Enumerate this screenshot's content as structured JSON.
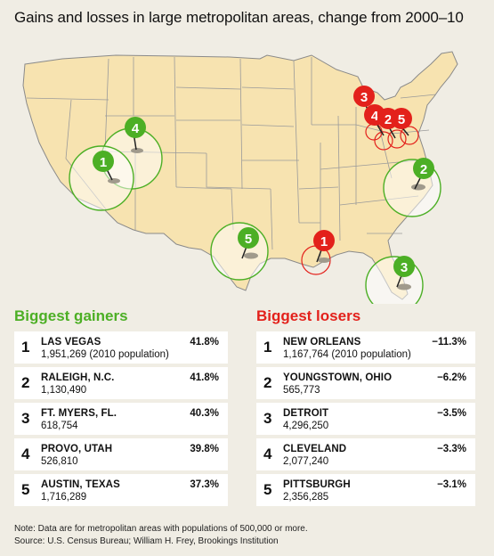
{
  "title": "Gains and losses in large metropolitan areas, change from 2000–10",
  "colors": {
    "gain": "#4caf25",
    "loss": "#e3211b",
    "land": "#f7e3b0",
    "state_border": "#8a8a8a",
    "background": "#f0ede4"
  },
  "gainers": {
    "heading": "Biggest gainers",
    "items": [
      {
        "rank": "1",
        "name": "LAS VEGAS",
        "population": "1,951,269 (2010 population)",
        "change": "41.8%"
      },
      {
        "rank": "2",
        "name": "RALEIGH, N.C.",
        "population": "1,130,490",
        "change": "41.8%"
      },
      {
        "rank": "3",
        "name": "FT. MYERS, FL.",
        "population": "618,754",
        "change": "40.3%"
      },
      {
        "rank": "4",
        "name": "PROVO, UTAH",
        "population": "526,810",
        "change": "39.8%"
      },
      {
        "rank": "5",
        "name": "AUSTIN, TEXAS",
        "population": "1,716,289",
        "change": "37.3%"
      }
    ]
  },
  "losers": {
    "heading": "Biggest losers",
    "items": [
      {
        "rank": "1",
        "name": "NEW ORLEANS",
        "population": "1,167,764 (2010 population)",
        "change": "−11.3%"
      },
      {
        "rank": "2",
        "name": "YOUNGSTOWN, OHIO",
        "population": "565,773",
        "change": "−6.2%"
      },
      {
        "rank": "3",
        "name": "DETROIT",
        "population": "4,296,250",
        "change": "−3.5%"
      },
      {
        "rank": "4",
        "name": "CLEVELAND",
        "population": "2,077,240",
        "change": "−3.3%"
      },
      {
        "rank": "5",
        "name": "PITTSBURGH",
        "population": "2,356,285",
        "change": "−3.1%"
      }
    ]
  },
  "map_markers": {
    "gain": [
      "1",
      "2",
      "3",
      "4",
      "5"
    ],
    "loss": [
      "1",
      "2",
      "3",
      "4",
      "5"
    ]
  },
  "note": "Note: Data are for metropolitan areas with populations of 500,000 or more.",
  "source": "Source: U.S. Census Bureau; William H. Frey, Brookings Institution"
}
